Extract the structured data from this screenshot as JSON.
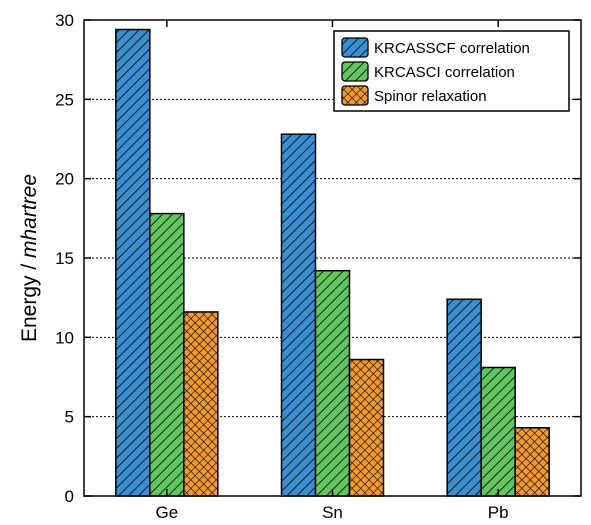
{
  "chart_data": {
    "type": "bar",
    "categories": [
      "Ge",
      "Sn",
      "Pb"
    ],
    "series": [
      {
        "name": "KRCASSCF correlation",
        "values": [
          29.4,
          22.8,
          12.4
        ],
        "color": "#3b8fd1",
        "pattern": "hatch-diagonal"
      },
      {
        "name": "KRCASCI correlation",
        "values": [
          17.8,
          14.2,
          8.1
        ],
        "color": "#63c55f",
        "pattern": "hatch-diagonal"
      },
      {
        "name": "Spinor relaxation",
        "values": [
          11.6,
          8.6,
          4.3
        ],
        "color": "#f39a2e",
        "pattern": "crosshatch"
      }
    ],
    "ylabel_main": "Energy / ",
    "ylabel_unit": "mhartree",
    "ylim": [
      0,
      30
    ],
    "yticks": [
      "0",
      "5",
      "10",
      "15",
      "20",
      "25",
      "30"
    ],
    "ytick_values": [
      0,
      5,
      10,
      15,
      20,
      25,
      30
    ],
    "grid": "horizontal dotted",
    "legend_position": "top-right"
  }
}
